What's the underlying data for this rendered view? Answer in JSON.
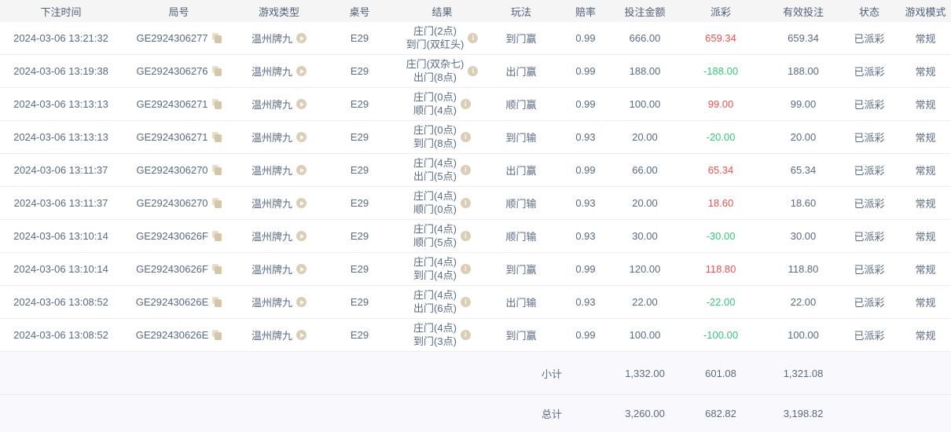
{
  "colors": {
    "positive_payout": "#ee5050",
    "negative_payout": "#35c879",
    "icon_beige": "#dbcdb6",
    "header_bg": "#f5f5f6",
    "totals_bg": "#f9f8fd"
  },
  "icons": {
    "copy": "copy-icon",
    "play": "play-icon",
    "info": "info-icon"
  },
  "table": {
    "columns": [
      {
        "key": "time",
        "label": "下注时间"
      },
      {
        "key": "round_id",
        "label": "局号"
      },
      {
        "key": "game_type",
        "label": "游戏类型"
      },
      {
        "key": "table_no",
        "label": "桌号"
      },
      {
        "key": "result",
        "label": "结果"
      },
      {
        "key": "play",
        "label": "玩法"
      },
      {
        "key": "odds",
        "label": "赔率"
      },
      {
        "key": "bet_amount",
        "label": "投注金额"
      },
      {
        "key": "payout",
        "label": "派彩"
      },
      {
        "key": "valid_bet",
        "label": "有效投注"
      },
      {
        "key": "status",
        "label": "状态"
      },
      {
        "key": "mode",
        "label": "游戏模式"
      }
    ],
    "rows": [
      {
        "time": "2024-03-06 13:21:32",
        "round_id": "GE2924306277",
        "game_type": "温州牌九",
        "table_no": "E29",
        "result_top": "庄门(2点)",
        "result_bottom": "到门(双红头)",
        "play": "到门赢",
        "odds": "0.99",
        "bet_amount": "666.00",
        "payout": "659.34",
        "payout_color": "red",
        "valid_bet": "659.34",
        "status": "已派彩",
        "mode": "常规"
      },
      {
        "time": "2024-03-06 13:19:38",
        "round_id": "GE2924306276",
        "game_type": "温州牌九",
        "table_no": "E29",
        "result_top": "庄门(双杂七)",
        "result_bottom": "出门(8点)",
        "play": "出门赢",
        "odds": "0.99",
        "bet_amount": "188.00",
        "payout": "-188.00",
        "payout_color": "green",
        "valid_bet": "188.00",
        "status": "已派彩",
        "mode": "常规"
      },
      {
        "time": "2024-03-06 13:13:13",
        "round_id": "GE2924306271",
        "game_type": "温州牌九",
        "table_no": "E29",
        "result_top": "庄门(0点)",
        "result_bottom": "顺门(4点)",
        "play": "顺门赢",
        "odds": "0.99",
        "bet_amount": "100.00",
        "payout": "99.00",
        "payout_color": "red",
        "valid_bet": "99.00",
        "status": "已派彩",
        "mode": "常规"
      },
      {
        "time": "2024-03-06 13:13:13",
        "round_id": "GE2924306271",
        "game_type": "温州牌九",
        "table_no": "E29",
        "result_top": "庄门(0点)",
        "result_bottom": "到门(8点)",
        "play": "到门输",
        "odds": "0.93",
        "bet_amount": "20.00",
        "payout": "-20.00",
        "payout_color": "green",
        "valid_bet": "20.00",
        "status": "已派彩",
        "mode": "常规"
      },
      {
        "time": "2024-03-06 13:11:37",
        "round_id": "GE2924306270",
        "game_type": "温州牌九",
        "table_no": "E29",
        "result_top": "庄门(4点)",
        "result_bottom": "出门(5点)",
        "play": "出门赢",
        "odds": "0.99",
        "bet_amount": "66.00",
        "payout": "65.34",
        "payout_color": "red",
        "valid_bet": "65.34",
        "status": "已派彩",
        "mode": "常规"
      },
      {
        "time": "2024-03-06 13:11:37",
        "round_id": "GE2924306270",
        "game_type": "温州牌九",
        "table_no": "E29",
        "result_top": "庄门(4点)",
        "result_bottom": "顺门(0点)",
        "play": "顺门输",
        "odds": "0.93",
        "bet_amount": "20.00",
        "payout": "18.60",
        "payout_color": "red",
        "valid_bet": "18.60",
        "status": "已派彩",
        "mode": "常规"
      },
      {
        "time": "2024-03-06 13:10:14",
        "round_id": "GE292430626F",
        "game_type": "温州牌九",
        "table_no": "E29",
        "result_top": "庄门(4点)",
        "result_bottom": "顺门(5点)",
        "play": "顺门输",
        "odds": "0.93",
        "bet_amount": "30.00",
        "payout": "-30.00",
        "payout_color": "green",
        "valid_bet": "30.00",
        "status": "已派彩",
        "mode": "常规"
      },
      {
        "time": "2024-03-06 13:10:14",
        "round_id": "GE292430626F",
        "game_type": "温州牌九",
        "table_no": "E29",
        "result_top": "庄门(4点)",
        "result_bottom": "到门(4点)",
        "play": "到门赢",
        "odds": "0.99",
        "bet_amount": "120.00",
        "payout": "118.80",
        "payout_color": "red",
        "valid_bet": "118.80",
        "status": "已派彩",
        "mode": "常规"
      },
      {
        "time": "2024-03-06 13:08:52",
        "round_id": "GE292430626E",
        "game_type": "温州牌九",
        "table_no": "E29",
        "result_top": "庄门(4点)",
        "result_bottom": "出门(6点)",
        "play": "出门输",
        "odds": "0.93",
        "bet_amount": "22.00",
        "payout": "-22.00",
        "payout_color": "green",
        "valid_bet": "22.00",
        "status": "已派彩",
        "mode": "常规"
      },
      {
        "time": "2024-03-06 13:08:52",
        "round_id": "GE292430626E",
        "game_type": "温州牌九",
        "table_no": "E29",
        "result_top": "庄门(4点)",
        "result_bottom": "到门(3点)",
        "play": "到门赢",
        "odds": "0.99",
        "bet_amount": "100.00",
        "payout": "-100.00",
        "payout_color": "green",
        "valid_bet": "100.00",
        "status": "已派彩",
        "mode": "常规"
      }
    ],
    "subtotal": {
      "label": "小计",
      "bet_amount": "1,332.00",
      "payout": "601.08",
      "valid_bet": "1,321.08"
    },
    "total": {
      "label": "总计",
      "bet_amount": "3,260.00",
      "payout": "682.82",
      "valid_bet": "3,198.82"
    }
  }
}
